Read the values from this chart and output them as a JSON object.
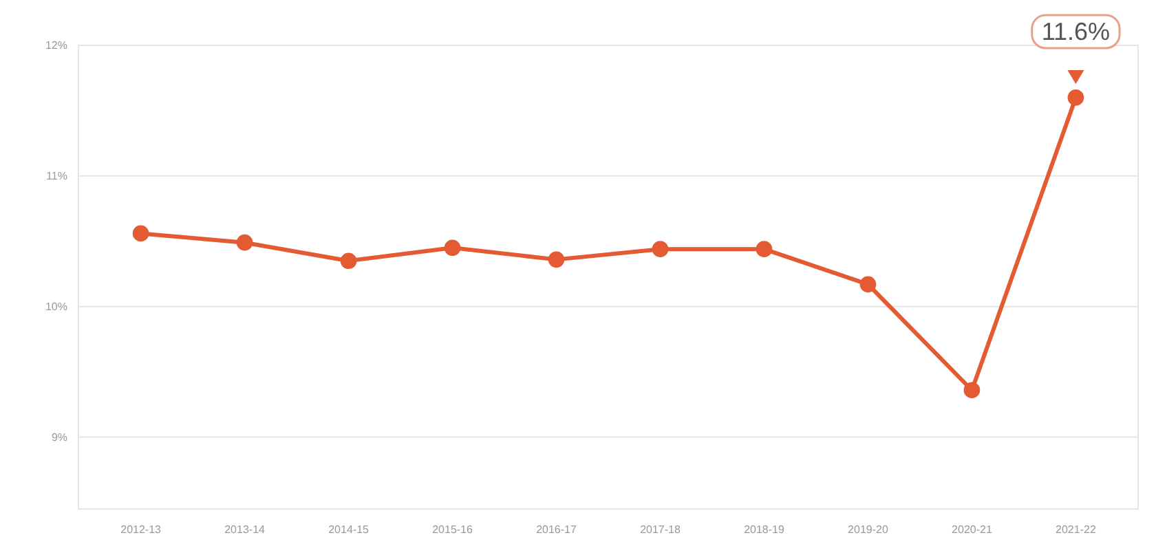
{
  "chart_data": {
    "type": "line",
    "categories": [
      "2012-13",
      "2013-14",
      "2014-15",
      "2015-16",
      "2016-17",
      "2017-18",
      "2018-19",
      "2019-20",
      "2020-21",
      "2021-22"
    ],
    "series": [
      {
        "color": "#e45a32",
        "values": [
          10.56,
          10.49,
          10.35,
          10.45,
          10.36,
          10.44,
          10.44,
          10.17,
          9.36,
          11.6
        ]
      }
    ],
    "ylim": [
      8.45,
      12
    ],
    "yticks": [
      {
        "value": 9,
        "label": "9%"
      },
      {
        "value": 10,
        "label": "10%"
      },
      {
        "value": 11,
        "label": "11%"
      },
      {
        "value": 12,
        "label": "12%"
      }
    ],
    "grid": "y",
    "marker": "circle",
    "line_style": "solid",
    "annotations": [
      {
        "text": "11.6%",
        "x": "2021-22",
        "y": 11.6
      }
    ]
  }
}
